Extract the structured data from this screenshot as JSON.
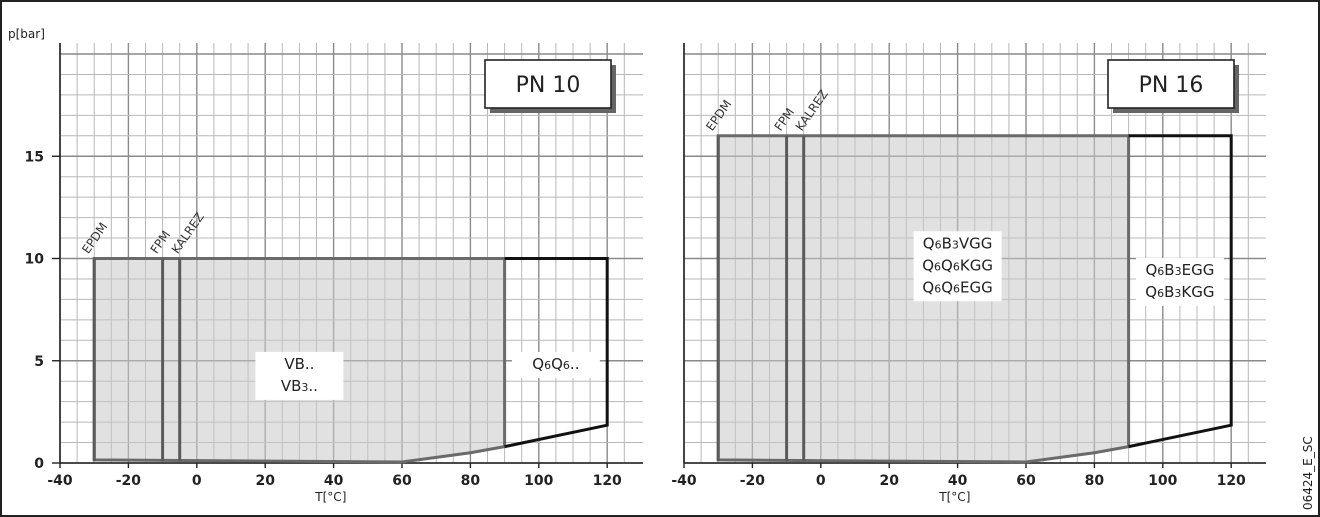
{
  "figure_id": "06424_E_SC",
  "chart_data": [
    {
      "type": "area",
      "title": "PN 10",
      "xlabel": "T[°C]",
      "ylabel": "p[bar]",
      "xlim": [
        -40,
        125
      ],
      "ylim": [
        0,
        20
      ],
      "xticks": [
        -40,
        -20,
        0,
        20,
        40,
        60,
        80,
        100,
        120
      ],
      "yticks": [
        0,
        5,
        10,
        15
      ],
      "grid": true,
      "materials": [
        {
          "name": "EPDM",
          "t_min": -30
        },
        {
          "name": "FPM",
          "t_min": -10
        },
        {
          "name": "KALREZ",
          "t_min": -5
        }
      ],
      "series": [
        {
          "name": "VB.. / VB3..",
          "labels": [
            "VB..",
            "VB3.."
          ],
          "shaded": true,
          "outline": [
            [
              -30,
              0.15
            ],
            [
              -30,
              10
            ],
            [
              90,
              10
            ],
            [
              90,
              0.8
            ],
            [
              80,
              0.5
            ],
            [
              60,
              0.05
            ],
            [
              -30,
              0.15
            ]
          ]
        },
        {
          "name": "Q6Q6..",
          "labels": [
            "Q6Q6.."
          ],
          "shaded": false,
          "outline": [
            [
              90,
              10
            ],
            [
              120,
              10
            ],
            [
              120,
              1.85
            ],
            [
              90,
              0.8
            ]
          ]
        }
      ]
    },
    {
      "type": "area",
      "title": "PN 16",
      "xlabel": "T[°C]",
      "ylabel": "",
      "xlim": [
        -40,
        125
      ],
      "ylim": [
        0,
        20
      ],
      "xticks": [
        -40,
        -20,
        0,
        20,
        40,
        60,
        80,
        100,
        120
      ],
      "yticks": [],
      "grid": true,
      "materials": [
        {
          "name": "EPDM",
          "t_min": -30
        },
        {
          "name": "FPM",
          "t_min": -10
        },
        {
          "name": "KALREZ",
          "t_min": -5
        }
      ],
      "series": [
        {
          "name": "Q6B3VGG / Q6Q6KGG / Q6Q6EGG",
          "labels": [
            "Q6B3VGG",
            "Q6Q6KGG",
            "Q6Q6EGG"
          ],
          "shaded": true,
          "outline": [
            [
              -30,
              0.15
            ],
            [
              -30,
              16
            ],
            [
              90,
              16
            ],
            [
              90,
              0.8
            ],
            [
              80,
              0.5
            ],
            [
              60,
              0.05
            ],
            [
              -30,
              0.15
            ]
          ]
        },
        {
          "name": "Q6B3EGG / Q6B3KGG",
          "labels": [
            "Q6B3EGG",
            "Q6B3KGG"
          ],
          "shaded": false,
          "outline": [
            [
              90,
              16
            ],
            [
              120,
              16
            ],
            [
              120,
              1.85
            ],
            [
              90,
              0.8
            ]
          ]
        }
      ]
    }
  ]
}
